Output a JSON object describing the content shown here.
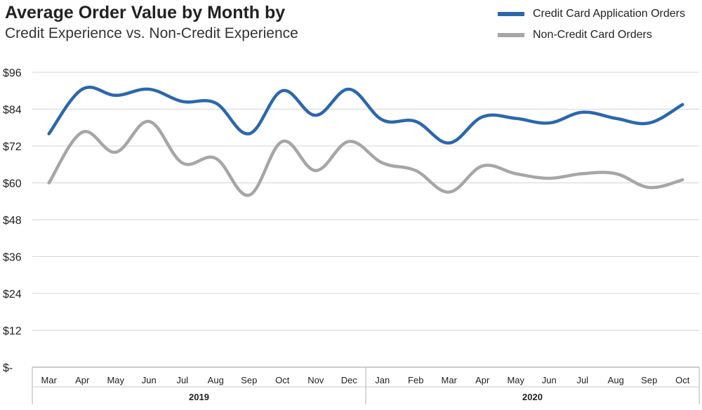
{
  "title": "Average Order Value by Month by",
  "subtitle": "Credit Experience vs. Non-Credit Experience",
  "chart_data": {
    "type": "line",
    "title": "Average Order Value by Month by",
    "subtitle": "Credit Experience vs. Non-Credit Experience",
    "xlabel": "",
    "ylabel": "",
    "categories": [
      "Mar",
      "Apr",
      "May",
      "Jun",
      "Jul",
      "Aug",
      "Sep",
      "Oct",
      "Nov",
      "Dec",
      "Jan",
      "Feb",
      "Mar",
      "Apr",
      "May",
      "Jun",
      "Jul",
      "Aug",
      "Sep",
      "Oct"
    ],
    "groups": [
      {
        "label": "2019",
        "start": 0,
        "end": 9
      },
      {
        "label": "2020",
        "start": 10,
        "end": 19
      }
    ],
    "ylim": [
      0,
      96
    ],
    "yticks": [
      0,
      12,
      24,
      36,
      48,
      60,
      72,
      84,
      96
    ],
    "ytick_labels": [
      "$-",
      "$12",
      "$24",
      "$36",
      "$48",
      "$60",
      "$72",
      "$84",
      "$96"
    ],
    "grid": "horizontal",
    "legend_position": "top-right",
    "series": [
      {
        "name": "Credit Card Application Orders",
        "color": "#2b67ad",
        "values": [
          76,
          90.5,
          88.5,
          90.5,
          86.5,
          86,
          76,
          90,
          82,
          90.5,
          80.5,
          80,
          73,
          81.5,
          81,
          79.5,
          83,
          81,
          79.5,
          85.5
        ]
      },
      {
        "name": "Non-Credit Card Orders",
        "color": "#a6a6a6",
        "values": [
          60,
          76.5,
          70,
          80,
          66.5,
          68,
          56,
          73.5,
          64,
          73.5,
          66.5,
          64,
          57,
          65.5,
          63,
          61.5,
          63,
          63,
          58.5,
          61
        ]
      }
    ]
  }
}
